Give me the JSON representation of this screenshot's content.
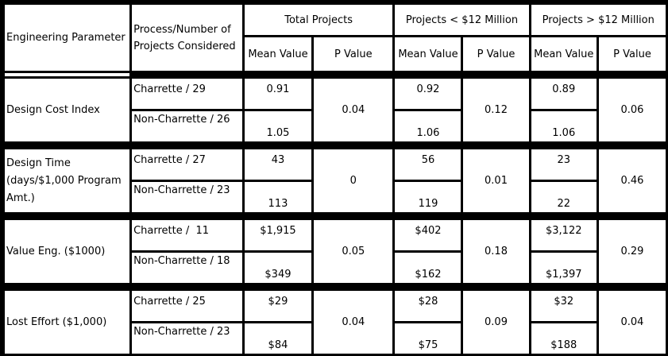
{
  "headers": {
    "parameter": "Engineering Parameter",
    "process": "Process/Number of Projects Considered",
    "total": "Total Projects",
    "under": "Projects < $12 Million",
    "over": "Projects > $12 Million",
    "mean": "Mean Value",
    "p": "P Value"
  },
  "rows": [
    {
      "parameter": "Design Cost Index",
      "charrette": "Charrette / 29",
      "non_charrette": "Non-Charrette / 26",
      "total": {
        "c": "0.91",
        "n": "1.05",
        "p": "0.04"
      },
      "under": {
        "c": "0.92",
        "n": "1.06",
        "p": "0.12"
      },
      "over": {
        "c": "0.89",
        "n": "1.06",
        "p": "0.06"
      }
    },
    {
      "parameter": "Design Time (days/$1,000 Program Amt.)",
      "charrette": "Charrette / 27",
      "non_charrette": "Non-Charrette / 23",
      "total": {
        "c": "43",
        "n": "113",
        "p": "0"
      },
      "under": {
        "c": "56",
        "n": "119",
        "p": "0.01"
      },
      "over": {
        "c": "23",
        "n": "22",
        "p": "0.46"
      }
    },
    {
      "parameter": "Value Eng. ($1000)",
      "charrette": "Charrette /  11",
      "non_charrette": "Non-Charrette / 18",
      "total": {
        "c": "$1,915",
        "n": "$349",
        "p": "0.05"
      },
      "under": {
        "c": "$402",
        "n": "$162",
        "p": "0.18"
      },
      "over": {
        "c": "$3,122",
        "n": "$1,397",
        "p": "0.29"
      }
    },
    {
      "parameter": "Lost Effort ($1,000)",
      "charrette": "Charrette / 25",
      "non_charrette": "Non-Charrette / 23",
      "total": {
        "c": "$29",
        "n": "$84",
        "p": "0.04"
      },
      "under": {
        "c": "$28",
        "n": "$75",
        "p": "0.09"
      },
      "over": {
        "c": "$32",
        "n": "$188",
        "p": "0.04"
      }
    }
  ]
}
